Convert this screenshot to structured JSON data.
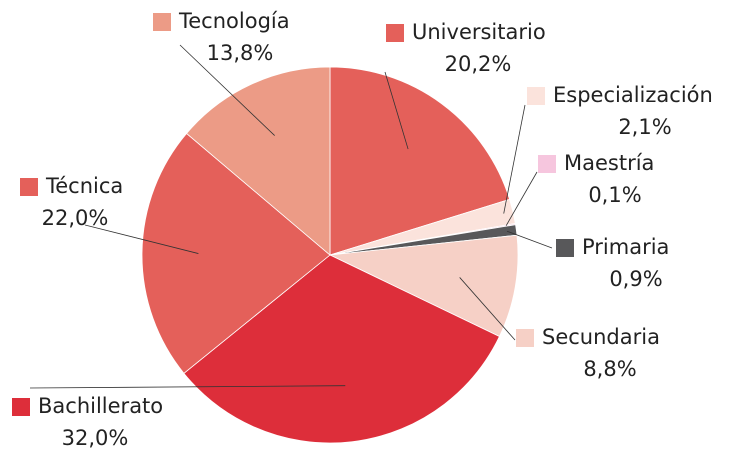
{
  "chart_data": {
    "type": "pie",
    "categories": [
      "Universitario",
      "Especialización",
      "Maestría",
      "Primaria",
      "Secundaria",
      "Bachillerato",
      "Técnica",
      "Tecnología"
    ],
    "values": [
      20.2,
      2.1,
      0.1,
      0.9,
      8.8,
      32.0,
      22.0,
      13.8
    ],
    "value_labels": [
      "20,2%",
      "2,1%",
      "0,1%",
      "0,9%",
      "8,8%",
      "32,0%",
      "22,0%",
      "13,8%"
    ],
    "colors": [
      "#e4605a",
      "#fbe3dc",
      "#f6c6de",
      "#58585a",
      "#f6d0c6",
      "#dd2e3a",
      "#e4605a",
      "#ec9b86"
    ]
  }
}
